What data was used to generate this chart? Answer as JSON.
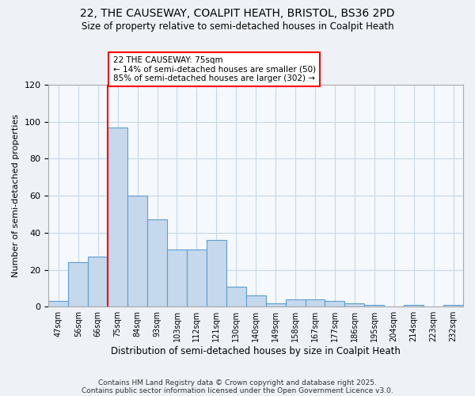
{
  "title_line1": "22, THE CAUSEWAY, COALPIT HEATH, BRISTOL, BS36 2PD",
  "title_line2": "Size of property relative to semi-detached houses in Coalpit Heath",
  "categories": [
    "47sqm",
    "56sqm",
    "66sqm",
    "75sqm",
    "84sqm",
    "93sqm",
    "103sqm",
    "112sqm",
    "121sqm",
    "130sqm",
    "140sqm",
    "149sqm",
    "158sqm",
    "167sqm",
    "177sqm",
    "186sqm",
    "195sqm",
    "204sqm",
    "214sqm",
    "223sqm",
    "232sqm"
  ],
  "values": [
    3,
    24,
    27,
    97,
    60,
    47,
    31,
    31,
    36,
    11,
    6,
    2,
    4,
    4,
    3,
    2,
    1,
    0,
    1,
    0,
    1
  ],
  "bar_color": "#c5d8ec",
  "bar_edge_color": "#5a9fd4",
  "ylabel": "Number of semi-detached properties",
  "xlabel": "Distribution of semi-detached houses by size in Coalpit Heath",
  "ylim": [
    0,
    120
  ],
  "yticks": [
    0,
    20,
    40,
    60,
    80,
    100,
    120
  ],
  "red_line_index": 3,
  "annotation_title": "22 THE CAUSEWAY: 75sqm",
  "annotation_line1": "← 14% of semi-detached houses are smaller (50)",
  "annotation_line2": "85% of semi-detached houses are larger (302) →",
  "footer_line1": "Contains HM Land Registry data © Crown copyright and database right 2025.",
  "footer_line2": "Contains public sector information licensed under the Open Government Licence v3.0.",
  "background_color": "#eef2f7",
  "plot_background": "#f5f8fc",
  "grid_color": "#c8d8e8"
}
